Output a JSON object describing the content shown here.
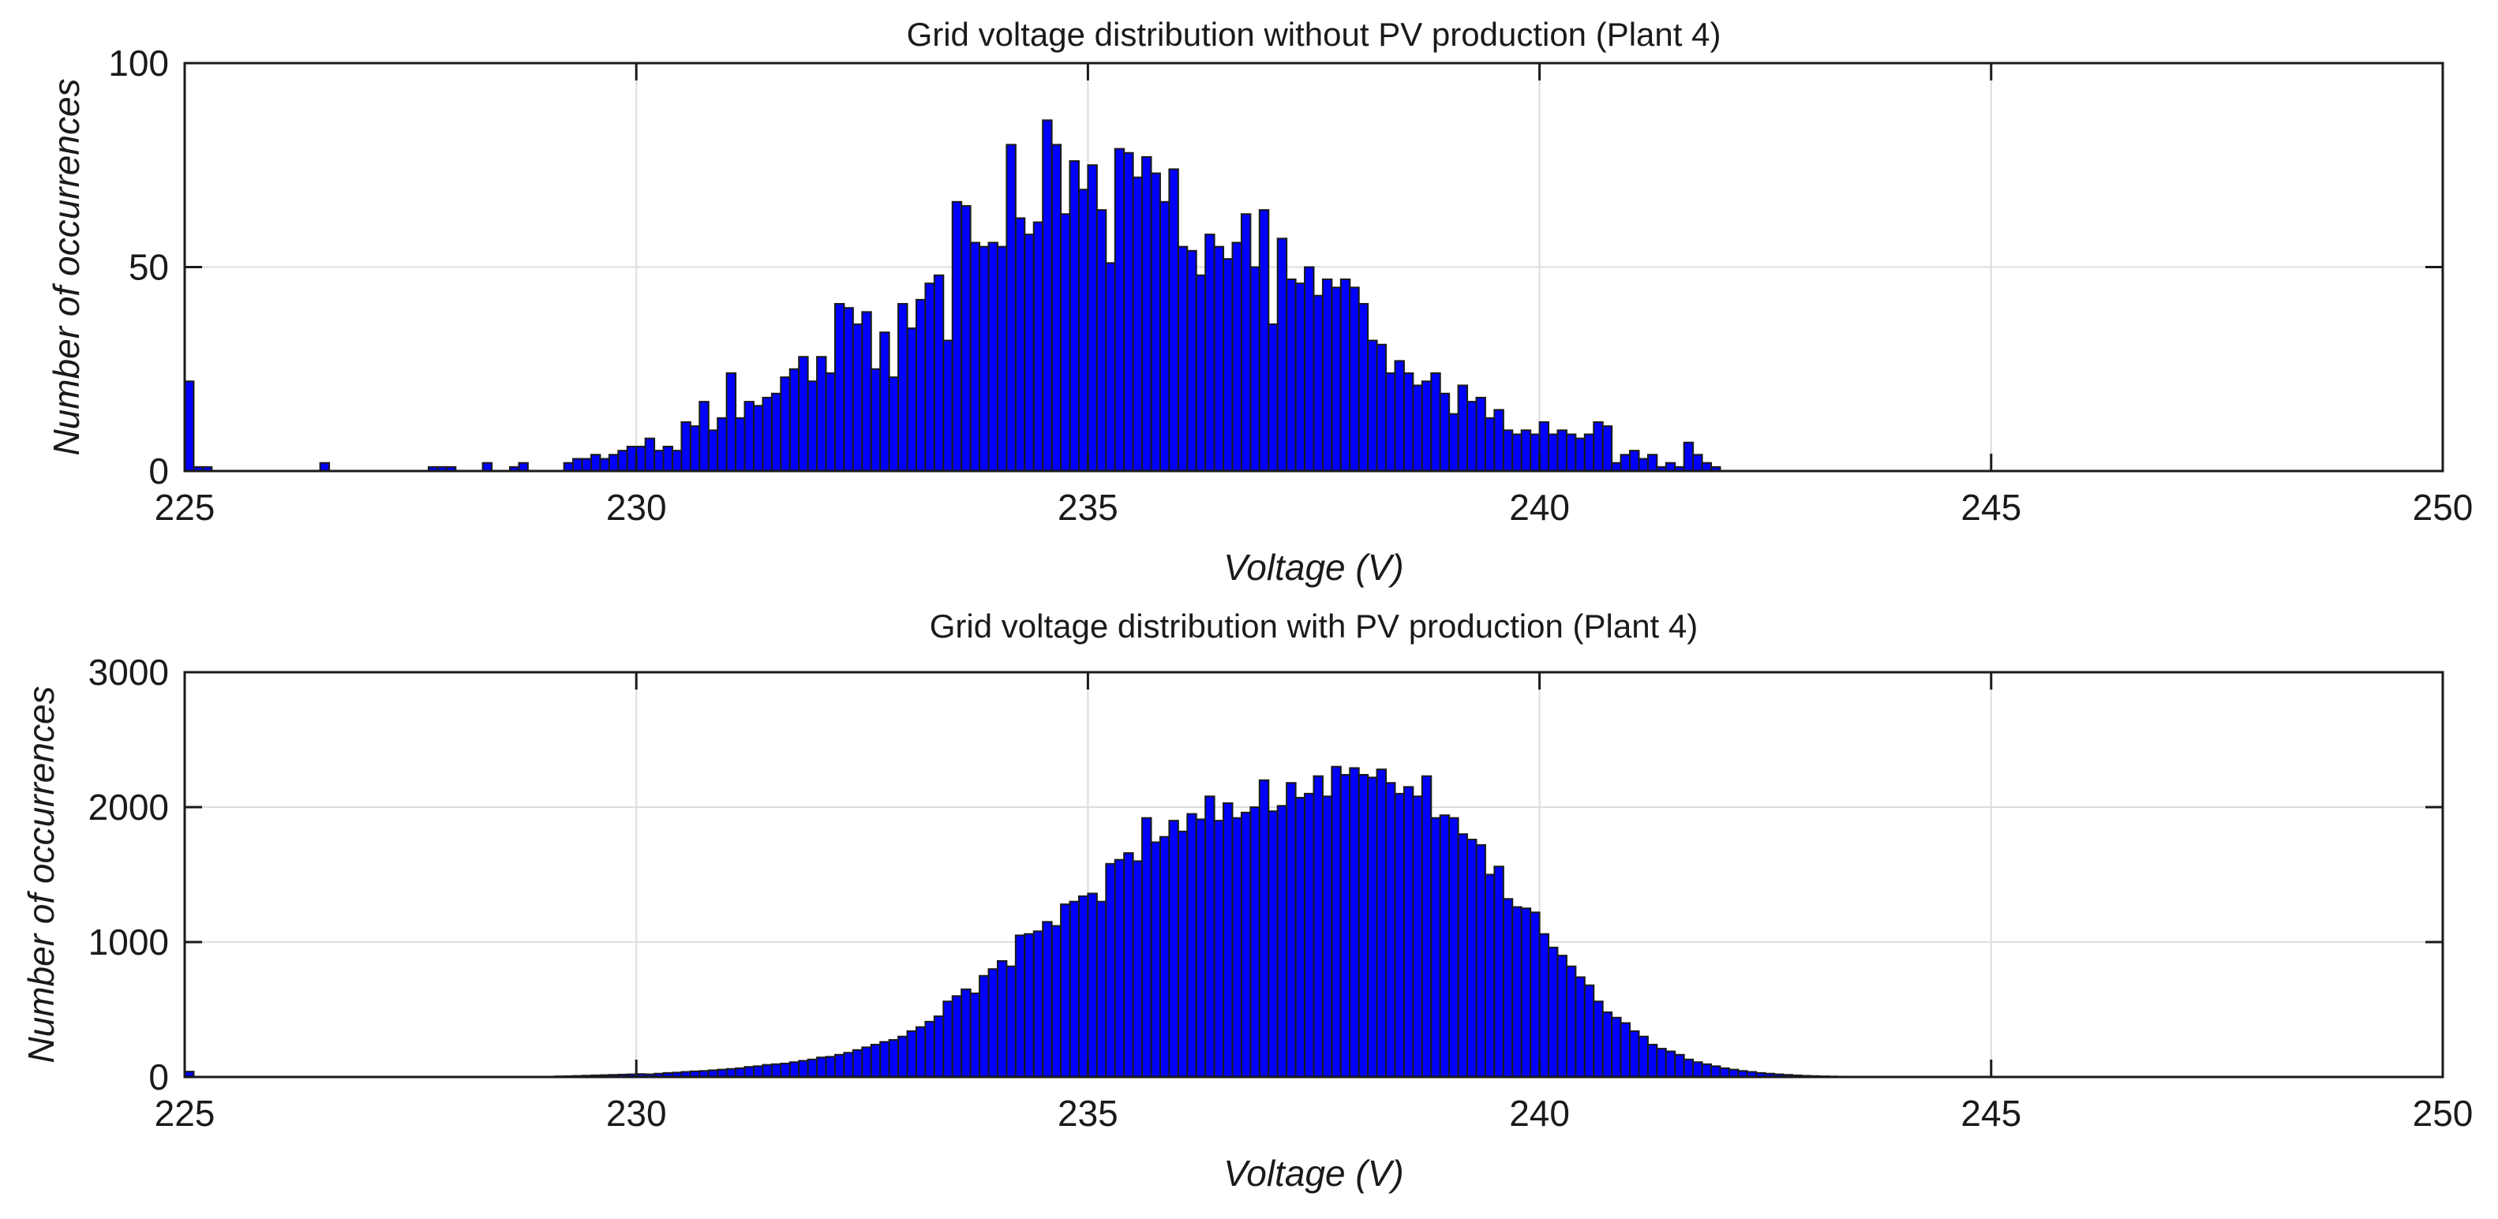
{
  "chart_data": [
    {
      "type": "bar",
      "title": "Grid voltage distribution without PV production (Plant 4)",
      "xlabel": "Voltage (V)",
      "ylabel": "Number of occurrences",
      "xlim": [
        225,
        250
      ],
      "ylim": [
        0,
        100
      ],
      "xticks": [
        225,
        230,
        235,
        240,
        245,
        250
      ],
      "yticks": [
        0,
        50,
        100
      ],
      "bin_width": 0.1,
      "grid": true,
      "bar_color": "#0000ff",
      "bins": [
        [
          225.0,
          22
        ],
        [
          225.1,
          1
        ],
        [
          225.2,
          1
        ],
        [
          226.5,
          2
        ],
        [
          227.7,
          1
        ],
        [
          227.8,
          1
        ],
        [
          227.9,
          1
        ],
        [
          228.3,
          2
        ],
        [
          228.6,
          1
        ],
        [
          228.7,
          2
        ],
        [
          229.2,
          2
        ],
        [
          229.3,
          3
        ],
        [
          229.4,
          3
        ],
        [
          229.5,
          4
        ],
        [
          229.6,
          3
        ],
        [
          229.7,
          4
        ],
        [
          229.8,
          5
        ],
        [
          229.9,
          6
        ],
        [
          230.0,
          6
        ],
        [
          230.1,
          8
        ],
        [
          230.2,
          5
        ],
        [
          230.3,
          6
        ],
        [
          230.4,
          5
        ],
        [
          230.5,
          12
        ],
        [
          230.6,
          11
        ],
        [
          230.7,
          17
        ],
        [
          230.8,
          10
        ],
        [
          230.9,
          13
        ],
        [
          231.0,
          24
        ],
        [
          231.1,
          13
        ],
        [
          231.2,
          17
        ],
        [
          231.3,
          16
        ],
        [
          231.4,
          18
        ],
        [
          231.5,
          19
        ],
        [
          231.6,
          23
        ],
        [
          231.7,
          25
        ],
        [
          231.8,
          28
        ],
        [
          231.9,
          22
        ],
        [
          232.0,
          28
        ],
        [
          232.1,
          24
        ],
        [
          232.2,
          41
        ],
        [
          232.3,
          40
        ],
        [
          232.4,
          36
        ],
        [
          232.5,
          39
        ],
        [
          232.6,
          25
        ],
        [
          232.7,
          34
        ],
        [
          232.8,
          23
        ],
        [
          232.9,
          41
        ],
        [
          233.0,
          35
        ],
        [
          233.1,
          42
        ],
        [
          233.2,
          46
        ],
        [
          233.3,
          48
        ],
        [
          233.4,
          32
        ],
        [
          233.5,
          66
        ],
        [
          233.6,
          65
        ],
        [
          233.7,
          56
        ],
        [
          233.8,
          55
        ],
        [
          233.9,
          56
        ],
        [
          234.0,
          55
        ],
        [
          234.1,
          80
        ],
        [
          234.2,
          62
        ],
        [
          234.3,
          58
        ],
        [
          234.4,
          61
        ],
        [
          234.5,
          86
        ],
        [
          234.6,
          80
        ],
        [
          234.7,
          63
        ],
        [
          234.8,
          76
        ],
        [
          234.9,
          69
        ],
        [
          235.0,
          75
        ],
        [
          235.1,
          64
        ],
        [
          235.2,
          51
        ],
        [
          235.3,
          79
        ],
        [
          235.4,
          78
        ],
        [
          235.5,
          72
        ],
        [
          235.6,
          77
        ],
        [
          235.7,
          73
        ],
        [
          235.8,
          66
        ],
        [
          235.9,
          74
        ],
        [
          236.0,
          55
        ],
        [
          236.1,
          54
        ],
        [
          236.2,
          48
        ],
        [
          236.3,
          58
        ],
        [
          236.4,
          55
        ],
        [
          236.5,
          52
        ],
        [
          236.6,
          56
        ],
        [
          236.7,
          63
        ],
        [
          236.8,
          50
        ],
        [
          236.9,
          64
        ],
        [
          237.0,
          36
        ],
        [
          237.1,
          57
        ],
        [
          237.2,
          47
        ],
        [
          237.3,
          46
        ],
        [
          237.4,
          50
        ],
        [
          237.5,
          43
        ],
        [
          237.6,
          47
        ],
        [
          237.7,
          45
        ],
        [
          237.8,
          47
        ],
        [
          237.9,
          45
        ],
        [
          238.0,
          41
        ],
        [
          238.1,
          32
        ],
        [
          238.2,
          31
        ],
        [
          238.3,
          24
        ],
        [
          238.4,
          27
        ],
        [
          238.5,
          24
        ],
        [
          238.6,
          21
        ],
        [
          238.7,
          22
        ],
        [
          238.8,
          24
        ],
        [
          238.9,
          19
        ],
        [
          239.0,
          14
        ],
        [
          239.1,
          21
        ],
        [
          239.2,
          17
        ],
        [
          239.3,
          18
        ],
        [
          239.4,
          13
        ],
        [
          239.5,
          15
        ],
        [
          239.6,
          10
        ],
        [
          239.7,
          9
        ],
        [
          239.8,
          10
        ],
        [
          239.9,
          9
        ],
        [
          240.0,
          12
        ],
        [
          240.1,
          9
        ],
        [
          240.2,
          10
        ],
        [
          240.3,
          9
        ],
        [
          240.4,
          8
        ],
        [
          240.5,
          9
        ],
        [
          240.6,
          12
        ],
        [
          240.7,
          11
        ],
        [
          240.8,
          2
        ],
        [
          240.9,
          4
        ],
        [
          241.0,
          5
        ],
        [
          241.1,
          3
        ],
        [
          241.2,
          4
        ],
        [
          241.3,
          1
        ],
        [
          241.4,
          2
        ],
        [
          241.5,
          1
        ],
        [
          241.6,
          7
        ],
        [
          241.7,
          4
        ],
        [
          241.8,
          2
        ],
        [
          241.9,
          1
        ]
      ]
    },
    {
      "type": "bar",
      "title": "Grid voltage distribution with PV production (Plant 4)",
      "xlabel": "Voltage (V)",
      "ylabel": "Number of occurrences",
      "xlim": [
        225,
        250
      ],
      "ylim": [
        0,
        3000
      ],
      "xticks": [
        225,
        230,
        235,
        240,
        245,
        250
      ],
      "yticks": [
        0,
        1000,
        2000,
        3000
      ],
      "bin_width": 0.1,
      "grid": true,
      "bar_color": "#0000ff",
      "bins": [
        [
          225.0,
          40
        ],
        [
          229.1,
          5
        ],
        [
          229.2,
          6
        ],
        [
          229.3,
          8
        ],
        [
          229.4,
          10
        ],
        [
          229.5,
          12
        ],
        [
          229.6,
          14
        ],
        [
          229.7,
          16
        ],
        [
          229.8,
          18
        ],
        [
          229.9,
          20
        ],
        [
          230.0,
          22
        ],
        [
          230.1,
          20
        ],
        [
          230.2,
          25
        ],
        [
          230.3,
          30
        ],
        [
          230.4,
          33
        ],
        [
          230.5,
          38
        ],
        [
          230.6,
          42
        ],
        [
          230.7,
          45
        ],
        [
          230.8,
          50
        ],
        [
          230.9,
          55
        ],
        [
          231.0,
          60
        ],
        [
          231.1,
          65
        ],
        [
          231.2,
          75
        ],
        [
          231.3,
          80
        ],
        [
          231.4,
          90
        ],
        [
          231.5,
          95
        ],
        [
          231.6,
          100
        ],
        [
          231.7,
          110
        ],
        [
          231.8,
          120
        ],
        [
          231.9,
          130
        ],
        [
          232.0,
          145
        ],
        [
          232.1,
          150
        ],
        [
          232.2,
          165
        ],
        [
          232.3,
          180
        ],
        [
          232.4,
          200
        ],
        [
          232.5,
          220
        ],
        [
          232.6,
          240
        ],
        [
          232.7,
          260
        ],
        [
          232.8,
          275
        ],
        [
          232.9,
          300
        ],
        [
          233.0,
          340
        ],
        [
          233.1,
          370
        ],
        [
          233.2,
          410
        ],
        [
          233.3,
          450
        ],
        [
          233.4,
          560
        ],
        [
          233.5,
          600
        ],
        [
          233.6,
          650
        ],
        [
          233.7,
          620
        ],
        [
          233.8,
          750
        ],
        [
          233.9,
          800
        ],
        [
          234.0,
          860
        ],
        [
          234.1,
          820
        ],
        [
          234.2,
          1050
        ],
        [
          234.3,
          1060
        ],
        [
          234.4,
          1080
        ],
        [
          234.5,
          1150
        ],
        [
          234.6,
          1120
        ],
        [
          234.7,
          1280
        ],
        [
          234.8,
          1300
        ],
        [
          234.9,
          1340
        ],
        [
          235.0,
          1360
        ],
        [
          235.1,
          1300
        ],
        [
          235.2,
          1580
        ],
        [
          235.3,
          1610
        ],
        [
          235.4,
          1660
        ],
        [
          235.5,
          1600
        ],
        [
          235.6,
          1920
        ],
        [
          235.7,
          1740
        ],
        [
          235.8,
          1780
        ],
        [
          235.9,
          1900
        ],
        [
          236.0,
          1820
        ],
        [
          236.1,
          1950
        ],
        [
          236.2,
          1910
        ],
        [
          236.3,
          2080
        ],
        [
          236.4,
          1900
        ],
        [
          236.5,
          2030
        ],
        [
          236.6,
          1920
        ],
        [
          236.7,
          1960
        ],
        [
          236.8,
          2000
        ],
        [
          236.9,
          2200
        ],
        [
          237.0,
          1970
        ],
        [
          237.1,
          2010
        ],
        [
          237.2,
          2180
        ],
        [
          237.3,
          2070
        ],
        [
          237.4,
          2100
        ],
        [
          237.5,
          2230
        ],
        [
          237.6,
          2080
        ],
        [
          237.7,
          2300
        ],
        [
          237.8,
          2240
        ],
        [
          237.9,
          2290
        ],
        [
          238.0,
          2240
        ],
        [
          238.1,
          2220
        ],
        [
          238.2,
          2280
        ],
        [
          238.3,
          2180
        ],
        [
          238.4,
          2100
        ],
        [
          238.5,
          2150
        ],
        [
          238.6,
          2080
        ],
        [
          238.7,
          2230
        ],
        [
          238.8,
          1920
        ],
        [
          238.9,
          1940
        ],
        [
          239.0,
          1920
        ],
        [
          239.1,
          1800
        ],
        [
          239.2,
          1760
        ],
        [
          239.3,
          1720
        ],
        [
          239.4,
          1500
        ],
        [
          239.5,
          1560
        ],
        [
          239.6,
          1320
        ],
        [
          239.7,
          1260
        ],
        [
          239.8,
          1250
        ],
        [
          239.9,
          1220
        ],
        [
          240.0,
          1060
        ],
        [
          240.1,
          960
        ],
        [
          240.2,
          900
        ],
        [
          240.3,
          820
        ],
        [
          240.4,
          740
        ],
        [
          240.5,
          680
        ],
        [
          240.6,
          560
        ],
        [
          240.7,
          480
        ],
        [
          240.8,
          440
        ],
        [
          240.9,
          400
        ],
        [
          241.0,
          340
        ],
        [
          241.1,
          300
        ],
        [
          241.2,
          240
        ],
        [
          241.3,
          210
        ],
        [
          241.4,
          190
        ],
        [
          241.5,
          165
        ],
        [
          241.6,
          130
        ],
        [
          241.7,
          110
        ],
        [
          241.8,
          95
        ],
        [
          241.9,
          80
        ],
        [
          242.0,
          65
        ],
        [
          242.1,
          55
        ],
        [
          242.2,
          45
        ],
        [
          242.3,
          38
        ],
        [
          242.4,
          30
        ],
        [
          242.5,
          25
        ],
        [
          242.6,
          20
        ],
        [
          242.7,
          16
        ],
        [
          242.8,
          12
        ],
        [
          242.9,
          9
        ],
        [
          243.0,
          7
        ],
        [
          243.1,
          5
        ],
        [
          243.2,
          4
        ],
        [
          243.3,
          3
        ],
        [
          243.4,
          2
        ],
        [
          243.5,
          2
        ]
      ]
    }
  ]
}
